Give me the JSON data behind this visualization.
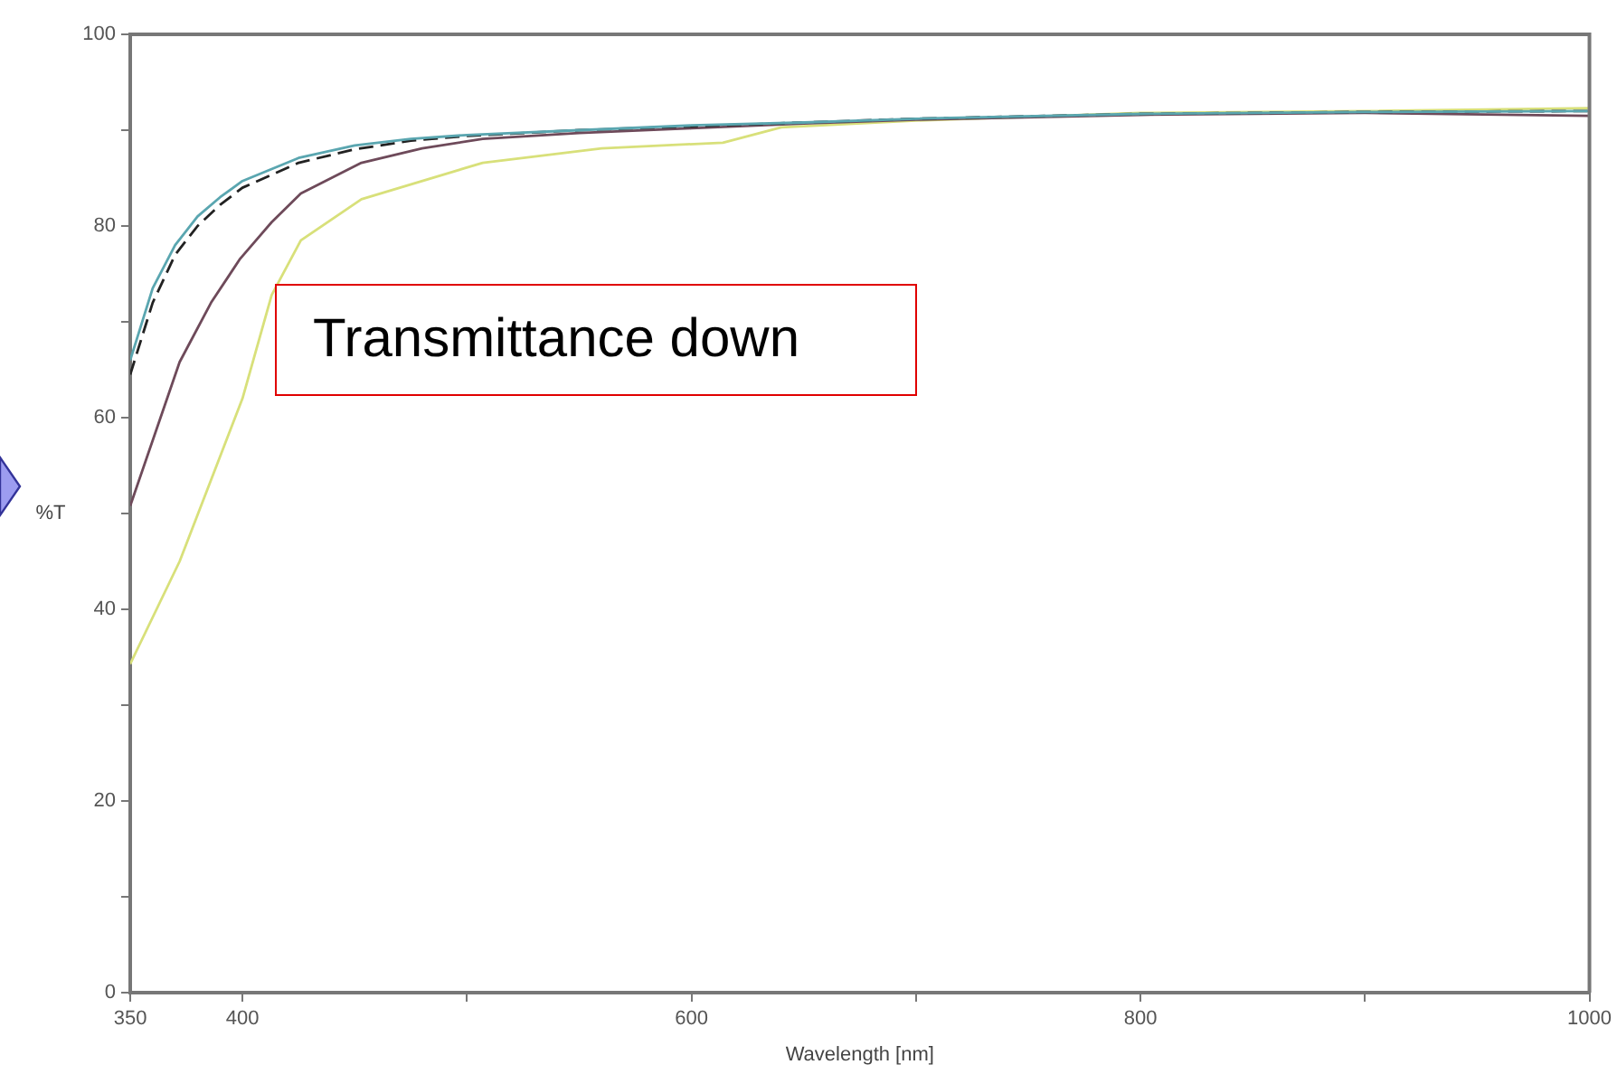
{
  "chart_data": {
    "type": "line",
    "xlabel": "Wavelength [nm]",
    "ylabel": "%T",
    "annotations": [
      "Transmittance down"
    ],
    "xlim": [
      350,
      1000
    ],
    "xticks": [
      350,
      400,
      {
        "value": 500,
        "label": null
      },
      600,
      {
        "value": 700,
        "label": null
      },
      800,
      {
        "value": 900,
        "label": null
      },
      1000
    ],
    "ylim": [
      0,
      100
    ],
    "yticks": [
      0,
      {
        "value": 10,
        "label": null
      },
      20,
      {
        "value": 30,
        "label": null
      },
      40,
      {
        "value": 50,
        "label": null
      },
      60,
      {
        "value": 70,
        "label": null
      },
      80,
      {
        "value": 90,
        "label": null
      },
      100
    ],
    "grid": false,
    "legend": false,
    "marker": "none",
    "series": [
      {
        "color": "#5aa6b0",
        "line_style": "solid",
        "x": [
          350,
          360,
          370,
          380,
          390,
          400,
          425,
          450,
          475,
          500,
          550,
          600,
          650,
          700,
          800,
          900,
          1000
        ],
        "values": [
          66,
          73.5,
          78,
          81,
          83,
          84.7,
          87.1,
          88.4,
          89.1,
          89.5,
          90,
          90.5,
          90.8,
          91.2,
          91.7,
          91.9,
          92
        ]
      },
      {
        "color": "#222222",
        "line_style": "dashed",
        "x": [
          350,
          360,
          370,
          380,
          390,
          400,
          425,
          450,
          475,
          500,
          550,
          600,
          650,
          700,
          800,
          900,
          1000
        ],
        "values": [
          64.5,
          72,
          77,
          80,
          82.2,
          84,
          86.6,
          88,
          88.9,
          89.4,
          90,
          90.4,
          90.8,
          91.2,
          91.7,
          91.9,
          92
        ]
      },
      {
        "color": "#6e4a5a",
        "line_style": "solid",
        "x": [
          350,
          372,
          386,
          399,
          413,
          426,
          453,
          480,
          507,
          550,
          600,
          650,
          700,
          800,
          900,
          1000
        ],
        "values": [
          50.8,
          65.8,
          72,
          76.6,
          80.4,
          83.4,
          86.6,
          88.1,
          89.1,
          89.7,
          90.2,
          90.7,
          91.1,
          91.6,
          91.8,
          91.5
        ]
      },
      {
        "color": "#d8e07a",
        "line_style": "solid",
        "x": [
          350,
          372,
          400,
          413,
          426,
          453,
          507,
          560,
          614,
          640,
          700,
          800,
          900,
          1000
        ],
        "values": [
          34.3,
          45,
          62,
          72.8,
          78.5,
          82.8,
          86.6,
          88.1,
          88.7,
          90.3,
          91,
          91.8,
          92,
          92.3
        ]
      }
    ]
  }
}
